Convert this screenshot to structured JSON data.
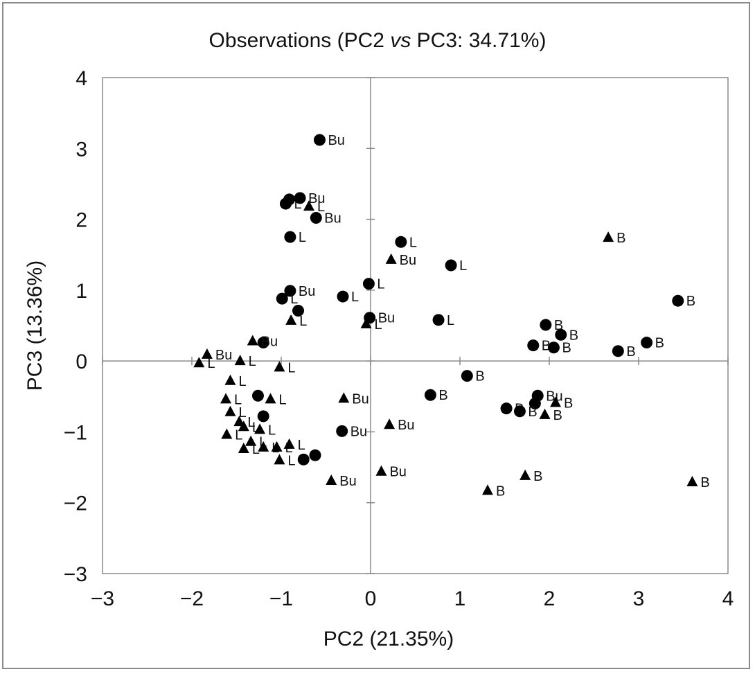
{
  "title": {
    "prefix": "Observations (PC2 ",
    "italic": "vs",
    "suffix": " PC3: 34.71%)"
  },
  "chart_data": {
    "type": "scatter",
    "title": "Observations (PC2 vs PC3: 34.71%)",
    "xlabel": "PC2 (21.35%)",
    "ylabel": "PC3 (13.36%)",
    "xlim": [
      -3,
      4
    ],
    "ylim": [
      -3,
      4
    ],
    "xticks": [
      -3,
      -2,
      -1,
      0,
      1,
      2,
      3,
      4
    ],
    "yticks": [
      -3,
      -2,
      -1,
      0,
      1,
      2,
      3,
      4
    ],
    "xtick_labels": [
      "−3",
      "−2",
      "−1",
      "0",
      "1",
      "2",
      "3",
      "4"
    ],
    "ytick_labels": [
      "−3",
      "−2",
      "−1",
      "0",
      "1",
      "2",
      "3",
      "4"
    ],
    "grid": false,
    "reference_lines": {
      "x": 0,
      "y": 0
    },
    "marker_color": "#000000",
    "series": [
      {
        "marker": "circle",
        "points": [
          {
            "x": -0.57,
            "y": 3.12,
            "label": "Bu"
          },
          {
            "x": -0.95,
            "y": 2.22,
            "label": "L"
          },
          {
            "x": -0.91,
            "y": 2.28,
            "label": ""
          },
          {
            "x": -0.79,
            "y": 2.3,
            "label": "Bu"
          },
          {
            "x": -0.61,
            "y": 2.02,
            "label": "Bu"
          },
          {
            "x": -0.9,
            "y": 1.75,
            "label": "L"
          },
          {
            "x": 0.34,
            "y": 1.68,
            "label": "L"
          },
          {
            "x": 0.9,
            "y": 1.35,
            "label": "L"
          },
          {
            "x": -0.9,
            "y": 0.99,
            "label": "Bu"
          },
          {
            "x": -0.99,
            "y": 0.88,
            "label": "L"
          },
          {
            "x": -0.81,
            "y": 0.71,
            "label": ""
          },
          {
            "x": -0.31,
            "y": 0.91,
            "label": "L"
          },
          {
            "x": -0.02,
            "y": 1.09,
            "label": "L"
          },
          {
            "x": -0.01,
            "y": 0.61,
            "label": "Bu"
          },
          {
            "x": 0.76,
            "y": 0.58,
            "label": "L"
          },
          {
            "x": -1.2,
            "y": 0.26,
            "label": ""
          },
          {
            "x": 1.96,
            "y": 0.51,
            "label": "B"
          },
          {
            "x": 2.13,
            "y": 0.37,
            "label": "B"
          },
          {
            "x": 1.82,
            "y": 0.22,
            "label": "B"
          },
          {
            "x": 2.05,
            "y": 0.19,
            "label": "B"
          },
          {
            "x": 3.44,
            "y": 0.85,
            "label": "B"
          },
          {
            "x": 3.09,
            "y": 0.26,
            "label": "B"
          },
          {
            "x": 2.77,
            "y": 0.14,
            "label": "B"
          },
          {
            "x": 1.08,
            "y": -0.21,
            "label": "B"
          },
          {
            "x": 0.67,
            "y": -0.48,
            "label": "B"
          },
          {
            "x": -1.26,
            "y": -0.49,
            "label": ""
          },
          {
            "x": -1.2,
            "y": -0.78,
            "label": ""
          },
          {
            "x": -0.32,
            "y": -0.99,
            "label": "Bu"
          },
          {
            "x": -0.62,
            "y": -1.33,
            "label": ""
          },
          {
            "x": -0.75,
            "y": -1.39,
            "label": ""
          },
          {
            "x": 1.87,
            "y": -0.49,
            "label": "Bu"
          },
          {
            "x": 1.84,
            "y": -0.6,
            "label": ""
          },
          {
            "x": 1.52,
            "y": -0.67,
            "label": "B"
          },
          {
            "x": 1.67,
            "y": -0.71,
            "label": "B"
          }
        ]
      },
      {
        "marker": "triangle",
        "points": [
          {
            "x": -0.69,
            "y": 2.18,
            "label": "L"
          },
          {
            "x": 2.66,
            "y": 1.74,
            "label": "B"
          },
          {
            "x": 0.23,
            "y": 1.43,
            "label": "Bu"
          },
          {
            "x": -0.89,
            "y": 0.57,
            "label": "L"
          },
          {
            "x": -0.05,
            "y": 0.52,
            "label": "L"
          },
          {
            "x": -1.32,
            "y": 0.28,
            "label": "Bu"
          },
          {
            "x": -1.83,
            "y": 0.09,
            "label": "Bu"
          },
          {
            "x": -1.92,
            "y": -0.03,
            "label": "L"
          },
          {
            "x": -1.46,
            "y": 0.0,
            "label": "L"
          },
          {
            "x": -1.02,
            "y": -0.09,
            "label": "L"
          },
          {
            "x": -1.57,
            "y": -0.28,
            "label": "L"
          },
          {
            "x": -1.62,
            "y": -0.54,
            "label": "L"
          },
          {
            "x": -1.57,
            "y": -0.72,
            "label": "L"
          },
          {
            "x": -1.47,
            "y": -0.86,
            "label": "L"
          },
          {
            "x": -1.42,
            "y": -0.93,
            "label": "L"
          },
          {
            "x": -1.24,
            "y": -0.97,
            "label": "L"
          },
          {
            "x": -1.12,
            "y": -0.54,
            "label": "L"
          },
          {
            "x": -1.61,
            "y": -1.04,
            "label": "L"
          },
          {
            "x": -1.34,
            "y": -1.14,
            "label": "L"
          },
          {
            "x": -1.42,
            "y": -1.24,
            "label": "L"
          },
          {
            "x": -1.2,
            "y": -1.22,
            "label": "L"
          },
          {
            "x": -1.05,
            "y": -1.22,
            "label": "L"
          },
          {
            "x": -0.91,
            "y": -1.18,
            "label": "L"
          },
          {
            "x": -1.02,
            "y": -1.4,
            "label": "L"
          },
          {
            "x": -0.3,
            "y": -0.53,
            "label": "Bu"
          },
          {
            "x": 0.21,
            "y": -0.9,
            "label": "Bu"
          },
          {
            "x": 0.12,
            "y": -1.56,
            "label": "Bu"
          },
          {
            "x": -0.44,
            "y": -1.69,
            "label": "Bu"
          },
          {
            "x": 2.07,
            "y": -0.59,
            "label": "B"
          },
          {
            "x": 1.95,
            "y": -0.76,
            "label": "B"
          },
          {
            "x": 1.73,
            "y": -1.62,
            "label": "B"
          },
          {
            "x": 1.31,
            "y": -1.83,
            "label": "B"
          },
          {
            "x": 3.6,
            "y": -1.71,
            "label": "B"
          }
        ]
      }
    ]
  }
}
